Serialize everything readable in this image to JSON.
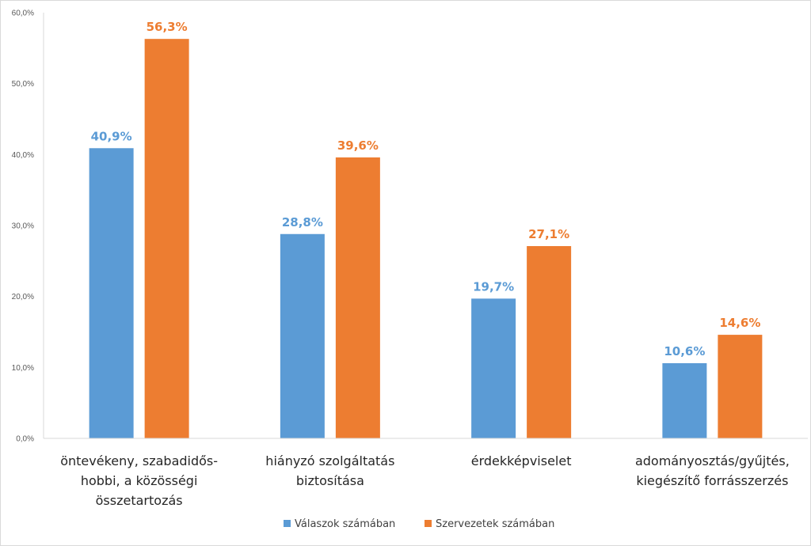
{
  "chart_data": {
    "type": "bar",
    "categories": [
      [
        "öntevékeny, szabadidős-",
        "hobbi, a közösségi",
        "összetartozás"
      ],
      [
        "hiányzó szolgáltatás",
        "biztosítása"
      ],
      [
        "érdekképviselet"
      ],
      [
        "adományosztás/gyűjtés,",
        "kiegészítő forrásszerzés"
      ]
    ],
    "series": [
      {
        "name": "Válaszok számában",
        "color": "#5b9bd5",
        "values": [
          40.9,
          28.8,
          19.7,
          10.6
        ],
        "labels": [
          "40,9%",
          "28,8%",
          "19,7%",
          "10,6%"
        ]
      },
      {
        "name": "Szervezetek számában",
        "color": "#ed7d31",
        "values": [
          56.3,
          39.6,
          27.1,
          14.6
        ],
        "labels": [
          "56,3%",
          "39,6%",
          "27,1%",
          "14,6%"
        ]
      }
    ],
    "ylim": [
      0,
      60
    ],
    "yticks": [
      0,
      10,
      20,
      30,
      40,
      50,
      60
    ],
    "ytick_labels": [
      "0,0%",
      "10,0%",
      "20,0%",
      "30,0%",
      "40,0%",
      "50,0%",
      "60,0%"
    ],
    "grid": false,
    "legend_position": "bottom"
  }
}
